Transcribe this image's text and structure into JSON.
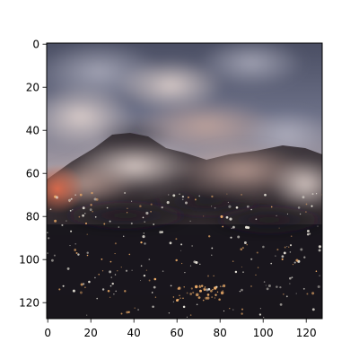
{
  "image": {
    "description_layers": {
      "sky_top": "#5d6277",
      "sky_mid": "#8a8fa2",
      "cloud_glow": "#d6c6c3",
      "cloud_warm": "#c8a69b",
      "rock_dark": "#3b2f31",
      "city_dark": "#1c1a22",
      "light_warm": "#f2b06a",
      "light_cool": "#e9e5da",
      "fire_glow": "#d86a4c"
    }
  },
  "axes": {
    "x_ticks": [
      "0",
      "20",
      "40",
      "60",
      "80",
      "100",
      "120"
    ],
    "y_ticks": [
      "0",
      "20",
      "40",
      "60",
      "80",
      "100",
      "120"
    ],
    "x_tick_values": [
      0,
      20,
      40,
      60,
      80,
      100,
      120
    ],
    "y_tick_values": [
      0,
      20,
      40,
      60,
      80,
      100,
      120
    ],
    "xlim": [
      -0.5,
      127.5
    ],
    "ylim": [
      127.5,
      -0.5
    ]
  }
}
